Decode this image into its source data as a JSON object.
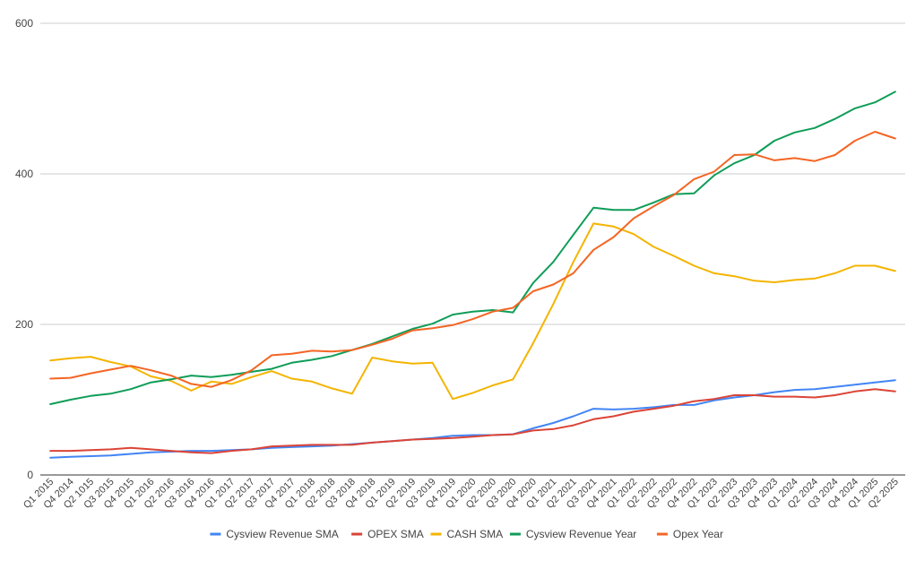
{
  "chart_data": {
    "type": "line",
    "title": "",
    "xlabel": "",
    "ylabel": "",
    "ylim": [
      0,
      600
    ],
    "yticks": [
      0,
      200,
      400,
      600
    ],
    "grid": true,
    "legend_position": "bottom",
    "categories": [
      "Q1 2015",
      "Q4 2014",
      "Q2 1015",
      "Q3 2015",
      "Q4 2015",
      "Q1 2016",
      "Q2 2016",
      "Q3 2016",
      "Q4 2016",
      "Q1 2017",
      "Q2 2017",
      "Q3 2017",
      "Q4 2017",
      "Q1 2018",
      "Q2 2018",
      "Q3 2018",
      "Q4 2018",
      "Q1 2019",
      "Q2 2019",
      "Q3 2019",
      "Q4 2019",
      "Q1 2020",
      "Q2 2020",
      "Q3 2020",
      "Q4 2020",
      "Q1 2021",
      "Q2 2021",
      "Q3 2021",
      "Q4 2021",
      "Q1 2022",
      "Q2 2022",
      "Q3 2022",
      "Q4 2022",
      "Q1 2023",
      "Q2 2023",
      "Q3 2023",
      "Q4 2023",
      "Q1 2024",
      "Q2 2024",
      "Q3 2024",
      "Q4 2024",
      "Q1 2025",
      "Q2 2025"
    ],
    "series": [
      {
        "name": "Cysview Revenue SMA",
        "color": "#4285f4",
        "values": [
          23,
          24,
          25,
          26,
          28,
          30,
          31,
          32,
          32,
          33,
          34,
          36,
          37,
          38,
          39,
          41,
          43,
          45,
          47,
          49,
          52,
          53,
          53,
          54,
          62,
          69,
          78,
          88,
          87,
          88,
          90,
          93,
          93,
          99,
          103,
          106,
          110,
          113,
          114,
          117,
          120,
          123,
          126
        ]
      },
      {
        "name": "OPEX SMA",
        "color": "#db4437",
        "values": [
          32,
          32,
          33,
          34,
          36,
          34,
          32,
          30,
          29,
          32,
          34,
          38,
          39,
          40,
          40,
          40,
          43,
          45,
          47,
          48,
          49,
          51,
          53,
          54,
          59,
          61,
          66,
          74,
          78,
          84,
          88,
          92,
          98,
          101,
          106,
          106,
          104,
          104,
          103,
          106,
          111,
          114,
          111
        ]
      },
      {
        "name": "CASH SMA",
        "color": "#f4b400",
        "values": [
          152,
          155,
          157,
          150,
          144,
          131,
          125,
          112,
          124,
          121,
          130,
          138,
          128,
          124,
          115,
          108,
          156,
          151,
          148,
          149,
          101,
          109,
          119,
          127,
          175,
          227,
          283,
          334,
          330,
          320,
          303,
          291,
          278,
          268,
          264,
          258,
          256,
          259,
          261,
          268,
          278,
          278,
          271
        ]
      },
      {
        "name": "Cysview Revenue Year",
        "color": "#0f9d58",
        "values": [
          94,
          100,
          105,
          108,
          114,
          123,
          127,
          132,
          130,
          133,
          137,
          141,
          149,
          153,
          158,
          166,
          174,
          184,
          194,
          201,
          213,
          217,
          219,
          216,
          255,
          283,
          319,
          355,
          352,
          352,
          362,
          373,
          374,
          398,
          414,
          425,
          444,
          455,
          461,
          473,
          487,
          495,
          509
        ]
      },
      {
        "name": "Opex Year",
        "color": "#f46524",
        "values": [
          128,
          129,
          135,
          140,
          145,
          139,
          132,
          121,
          117,
          126,
          139,
          159,
          161,
          165,
          164,
          166,
          173,
          181,
          192,
          195,
          199,
          207,
          217,
          222,
          244,
          253,
          268,
          299,
          316,
          341,
          357,
          372,
          393,
          403,
          425,
          426,
          418,
          421,
          417,
          425,
          444,
          456,
          447
        ]
      }
    ]
  }
}
